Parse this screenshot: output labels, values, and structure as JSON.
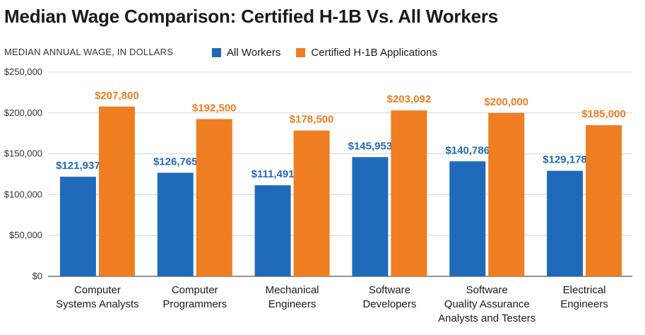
{
  "title": "Median Wage Comparison: Certified H-1B Vs. All Workers",
  "chart_data": {
    "type": "bar",
    "title": "Median Wage Comparison: Certified H-1B Vs. All Workers",
    "ylabel": "MEDIAN ANNUAL WAGE, IN DOLLARS",
    "xlabel": "",
    "ylim": [
      0,
      250000
    ],
    "grid": true,
    "legend_position": "top",
    "yticks": [
      0,
      50000,
      100000,
      150000,
      200000,
      250000
    ],
    "ytick_labels": [
      "$0",
      "$50,000",
      "$100,000",
      "$150,000",
      "$200,000",
      "$250,000"
    ],
    "categories": [
      [
        "Computer",
        "Systems Analysts"
      ],
      [
        "Computer",
        "Programmers"
      ],
      [
        "Mechanical",
        "Engineers"
      ],
      [
        "Software",
        "Developers"
      ],
      [
        "Software",
        "Quality Assurance",
        "Analysts and Testers"
      ],
      [
        "Electrical",
        "Engineers"
      ]
    ],
    "series": [
      {
        "name": "All Workers",
        "color": "#1f6bba",
        "values": [
          121937,
          126765,
          111491,
          145953,
          140786,
          129178
        ],
        "labels": [
          "$121,937",
          "$126,765",
          "$111,491",
          "$145,953",
          "$140,786",
          "$129,178"
        ]
      },
      {
        "name": "Certified H-1B Applications",
        "color": "#ef7d22",
        "values": [
          207800,
          192500,
          178500,
          203092,
          200000,
          185000
        ],
        "labels": [
          "$207,800",
          "$192,500",
          "$178,500",
          "$203,092",
          "$200,000",
          "$185,000"
        ]
      }
    ]
  }
}
